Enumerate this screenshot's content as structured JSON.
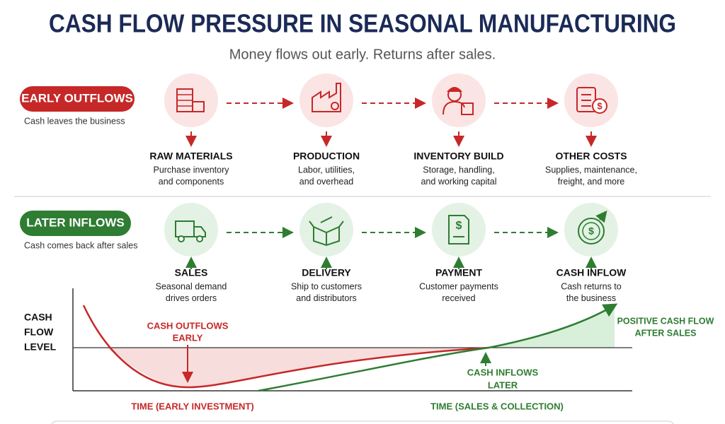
{
  "header": {
    "title": "CASH FLOW PRESSURE IN SEASONAL MANUFACTURING",
    "subtitle": "Money flows out early. Returns after sales."
  },
  "outflows": {
    "label": "EARLY OUTFLOWS",
    "note": "Cash leaves the business",
    "steps": [
      {
        "title": "RAW MATERIALS",
        "desc": [
          "Purchase inventory",
          "and components"
        ]
      },
      {
        "title": "PRODUCTION",
        "desc": [
          "Labor, utilities,",
          "and overhead"
        ]
      },
      {
        "title": "INVENTORY BUILD",
        "desc": [
          "Storage, handling,",
          "and working capital"
        ]
      },
      {
        "title": "OTHER COSTS",
        "desc": [
          "Supplies, maintenance,",
          "freight, and more"
        ]
      }
    ]
  },
  "inflows": {
    "label": "LATER INFLOWS",
    "note": "Cash comes back after sales",
    "steps": [
      {
        "title": "SALES",
        "desc": [
          "Seasonal demand",
          "drives orders"
        ]
      },
      {
        "title": "DELIVERY",
        "desc": [
          "Ship to customers",
          "and distributors"
        ]
      },
      {
        "title": "PAYMENT",
        "desc": [
          "Customer payments",
          "received"
        ]
      },
      {
        "title": "CASH INFLOW",
        "desc": [
          "Cash returns to",
          "the business"
        ]
      }
    ]
  },
  "curve": {
    "axis_label": [
      "CASH",
      "FLOW",
      "LEVEL"
    ],
    "outflow_label": [
      "CASH OUTFLOWS",
      "EARLY"
    ],
    "inflow_label": [
      "CASH INFLOWS",
      "LATER"
    ],
    "positive_label": [
      "POSITIVE CASH FLOW",
      "AFTER SALES"
    ],
    "time_early": "TIME   (EARLY INVESTMENT)",
    "time_late": "TIME   (SALES & COLLECTION)"
  }
}
